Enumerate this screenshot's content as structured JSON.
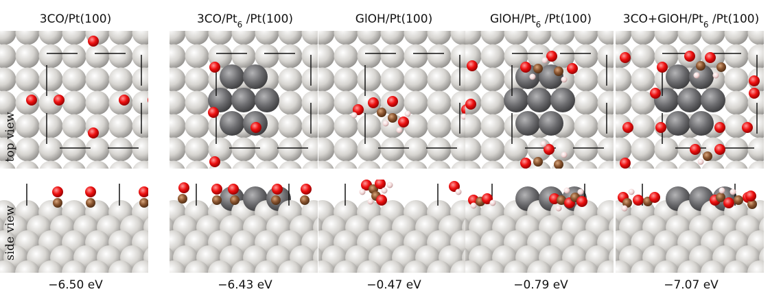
{
  "panels": [
    {
      "title": {
        "main": "3CO/Pt(100)"
      },
      "energy": "−6.50 eV"
    },
    {
      "title": {
        "main": "3CO/Pt",
        "sub": "6",
        "rest": " /Pt(100)"
      },
      "energy": "−6.43 eV"
    },
    {
      "title": {
        "main": "GlOH/Pt(100)"
      },
      "energy": "−0.47 eV"
    },
    {
      "title": {
        "main": "GlOH/Pt",
        "sub": "6",
        "rest": " /Pt(100)"
      },
      "energy": "−0.79 eV"
    },
    {
      "title": {
        "main": "3CO+GlOH/Pt",
        "sub": "6",
        "rest": " /Pt(100)"
      },
      "energy": "−7.07 eV"
    }
  ],
  "row_labels": {
    "top": "top view",
    "side": "side view"
  }
}
